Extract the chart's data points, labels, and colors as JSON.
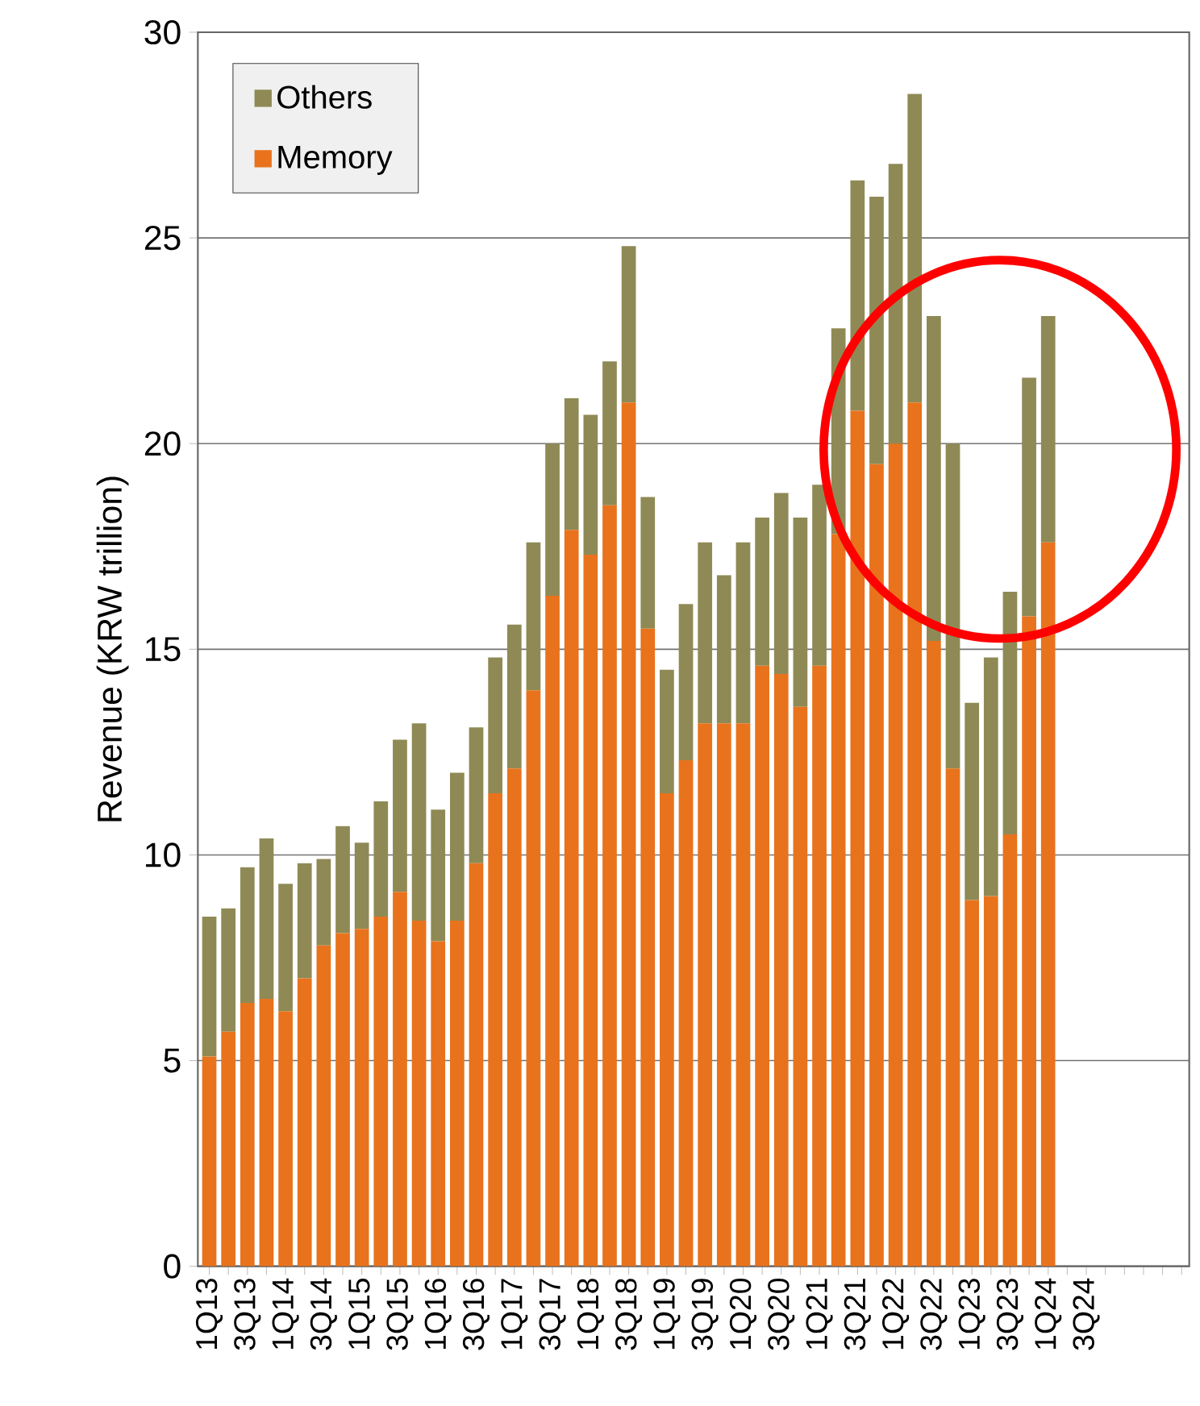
{
  "chart_data": {
    "type": "bar",
    "stacked": true,
    "ylabel": "Revenue (KRW trillion)",
    "categories": [
      "1Q13",
      null,
      "3Q13",
      null,
      "1Q14",
      null,
      "3Q14",
      null,
      "1Q15",
      null,
      "3Q15",
      null,
      "1Q16",
      null,
      "3Q16",
      null,
      "1Q17",
      null,
      "3Q17",
      null,
      "1Q18",
      null,
      "3Q18",
      null,
      "1Q19",
      null,
      "3Q19",
      null,
      "1Q20",
      null,
      "3Q20",
      null,
      "1Q21",
      null,
      "3Q21",
      null,
      "1Q22",
      null,
      "3Q22",
      null,
      "1Q23",
      null,
      "3Q23",
      null,
      "1Q24",
      null,
      "3Q24",
      null,
      null,
      null,
      null,
      null
    ],
    "series": [
      {
        "name": "Memory",
        "color": "#e8731c",
        "values": [
          5.1,
          5.7,
          6.4,
          6.5,
          6.2,
          7.0,
          7.8,
          8.1,
          8.2,
          8.5,
          9.1,
          8.4,
          7.9,
          8.4,
          9.8,
          11.5,
          12.1,
          14.0,
          16.3,
          17.9,
          17.3,
          18.5,
          21.0,
          15.5,
          11.5,
          12.3,
          13.2,
          13.2,
          13.2,
          14.6,
          14.4,
          13.6,
          14.6,
          17.8,
          20.8,
          19.5,
          20.0,
          21.0,
          15.2,
          12.1,
          8.9,
          9.0,
          10.5,
          15.8,
          17.6,
          null,
          null,
          null,
          null,
          null,
          null,
          null
        ]
      },
      {
        "name": "Others",
        "color": "#8f8a55",
        "values": [
          3.4,
          3.0,
          3.3,
          3.9,
          3.1,
          2.8,
          2.1,
          2.6,
          2.1,
          2.8,
          3.7,
          4.8,
          3.2,
          3.6,
          3.3,
          3.3,
          3.5,
          3.6,
          3.7,
          3.2,
          3.4,
          3.5,
          3.8,
          3.2,
          3.0,
          3.8,
          4.4,
          3.6,
          4.4,
          3.6,
          4.4,
          4.6,
          4.4,
          5.0,
          5.6,
          6.5,
          6.8,
          7.5,
          7.9,
          7.9,
          4.8,
          5.8,
          5.9,
          5.8,
          5.5,
          null,
          null,
          null,
          null,
          null,
          null,
          null
        ]
      }
    ],
    "ylim": [
      0,
      30
    ],
    "yticks": [
      0,
      5,
      10,
      15,
      20,
      25,
      30
    ],
    "grid": "y",
    "legend": "top left"
  }
}
